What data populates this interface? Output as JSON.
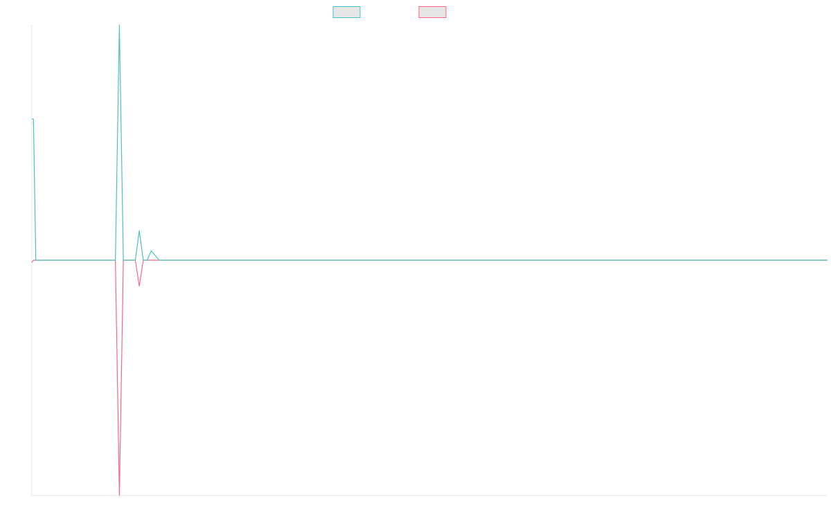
{
  "chart_data": {
    "type": "line",
    "title": "",
    "xlabel": "",
    "ylabel": "",
    "grid": false,
    "legend_position": "top-center",
    "xlim": [
      0,
      100
    ],
    "ylim": [
      -1,
      1
    ],
    "x": [
      0,
      0.2,
      0.5,
      1,
      3,
      5,
      7,
      10,
      10.5,
      11,
      11.5,
      12,
      12.5,
      13,
      13.5,
      14,
      14.5,
      15,
      16,
      16.5,
      17,
      18,
      20,
      30,
      40,
      50,
      60,
      70,
      80,
      90,
      100
    ],
    "series": [
      {
        "name": "",
        "color": "#4bc0c0",
        "fill": "#e6e6e6",
        "values": [
          0.6,
          0.6,
          0,
          0,
          0,
          0,
          0,
          0,
          0,
          1,
          0,
          0,
          0,
          0,
          0.125,
          0,
          0,
          0.04,
          0,
          0,
          0,
          0,
          0,
          0,
          0,
          0,
          0,
          0,
          0,
          0,
          0
        ]
      },
      {
        "name": "",
        "color": "#ff6384",
        "fill": "#e6e6e6",
        "values": [
          -0.01,
          0,
          0,
          0,
          0,
          0,
          0,
          0,
          0,
          -1,
          0,
          0,
          0,
          0,
          -0.11,
          0,
          0,
          0,
          0,
          0,
          0,
          0,
          0,
          0,
          0,
          0,
          0,
          0,
          0,
          0,
          0
        ]
      }
    ]
  }
}
